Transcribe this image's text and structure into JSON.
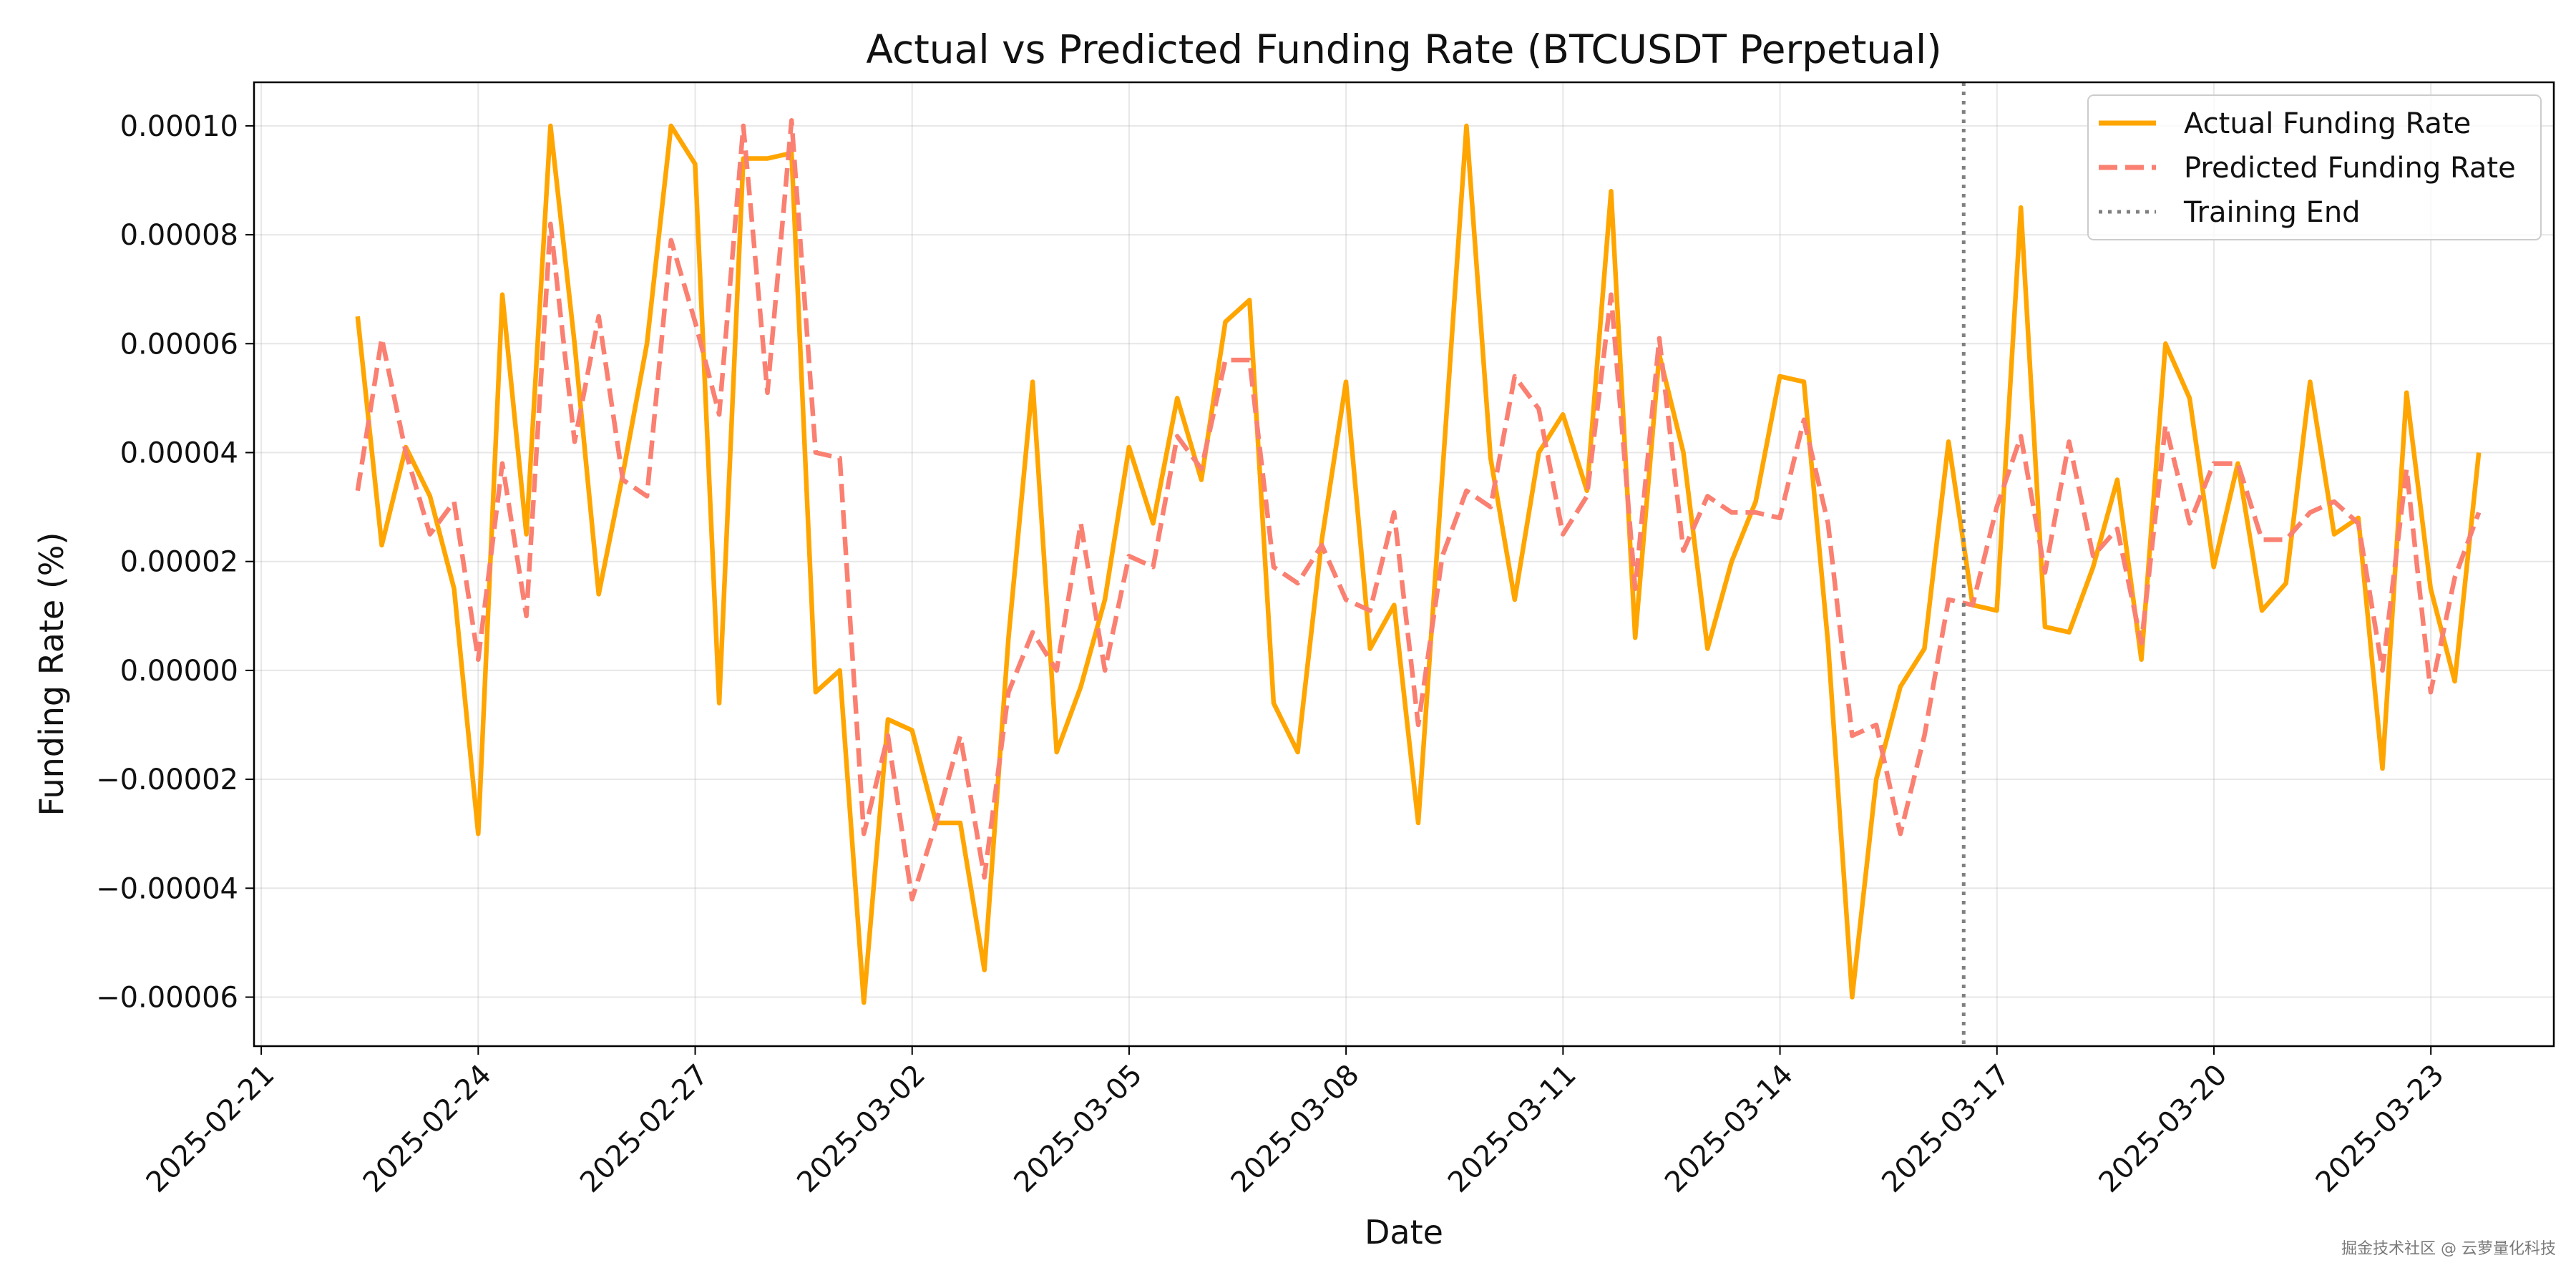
{
  "chart_data": {
    "type": "line",
    "title": "Actual vs Predicted Funding Rate (BTCUSDT Perpetual)",
    "xlabel": "Date",
    "ylabel": "Funding Rate (%)",
    "xlim": [
      -0.1,
      31.7
    ],
    "ylim": [
      -6.9e-05,
      0.000108
    ],
    "grid": true,
    "legend_position": "top-right",
    "x_ticks": [
      {
        "x": 0,
        "label": "2025-02-21"
      },
      {
        "x": 3,
        "label": "2025-02-24"
      },
      {
        "x": 6,
        "label": "2025-02-27"
      },
      {
        "x": 9,
        "label": "2025-03-02"
      },
      {
        "x": 12,
        "label": "2025-03-05"
      },
      {
        "x": 15,
        "label": "2025-03-08"
      },
      {
        "x": 18,
        "label": "2025-03-11"
      },
      {
        "x": 21,
        "label": "2025-03-14"
      },
      {
        "x": 24,
        "label": "2025-03-17"
      },
      {
        "x": 27,
        "label": "2025-03-20"
      },
      {
        "x": 30,
        "label": "2025-03-23"
      }
    ],
    "y_ticks": [
      {
        "y": 0.0001,
        "label": "0.00010"
      },
      {
        "y": 8e-05,
        "label": "0.00008"
      },
      {
        "y": 6e-05,
        "label": "0.00006"
      },
      {
        "y": 4e-05,
        "label": "0.00004"
      },
      {
        "y": 2e-05,
        "label": "0.00002"
      },
      {
        "y": 0.0,
        "label": "0.00000"
      },
      {
        "y": -2e-05,
        "label": "−0.00002"
      },
      {
        "y": -4e-05,
        "label": "−0.00004"
      },
      {
        "y": -6e-05,
        "label": "−0.00006"
      }
    ],
    "x_start": 1.333,
    "x_step": 0.3333,
    "series": [
      {
        "name": "Actual Funding Rate",
        "style": "solid",
        "color": "#FFA500",
        "values": [
          6.5e-05,
          2.3e-05,
          4.1e-05,
          3.2e-05,
          1.5e-05,
          -3e-05,
          6.9e-05,
          2.5e-05,
          0.0001,
          6e-05,
          1.4e-05,
          3.6e-05,
          6e-05,
          0.0001,
          9.3e-05,
          -6e-06,
          9.4e-05,
          9.4e-05,
          9.5e-05,
          -4e-06,
          0.0,
          -6.1e-05,
          -9e-06,
          -1.1e-05,
          -2.8e-05,
          -2.8e-05,
          -5.5e-05,
          6e-06,
          5.3e-05,
          -1.5e-05,
          -3e-06,
          1.3e-05,
          4.1e-05,
          2.7e-05,
          5e-05,
          3.5e-05,
          6.4e-05,
          6.8e-05,
          -6e-06,
          -1.5e-05,
          2.4e-05,
          5.3e-05,
          4e-06,
          1.2e-05,
          -2.8e-05,
          3.6e-05,
          0.0001,
          3.9e-05,
          1.3e-05,
          4e-05,
          4.7e-05,
          3.3e-05,
          8.8e-05,
          6e-06,
          5.8e-05,
          4e-05,
          4e-06,
          2e-05,
          3.1e-05,
          5.4e-05,
          5.3e-05,
          5e-06,
          -6e-05,
          -2e-05,
          -3e-06,
          4e-06,
          4.2e-05,
          1.2e-05,
          1.1e-05,
          8.5e-05,
          8e-06,
          7e-06,
          1.9e-05,
          3.5e-05,
          2e-06,
          6e-05,
          5e-05,
          1.9e-05,
          3.8e-05,
          1.1e-05,
          1.6e-05,
          5.3e-05,
          2.5e-05,
          2.8e-05,
          -1.8e-05,
          5.1e-05,
          1.5e-05,
          -2e-06,
          4e-05
        ]
      },
      {
        "name": "Predicted Funding Rate",
        "style": "dashed",
        "color": "#FA8072",
        "values": [
          3.3e-05,
          6.1e-05,
          4e-05,
          2.5e-05,
          3.1e-05,
          2e-06,
          3.8e-05,
          1e-05,
          8.2e-05,
          4.2e-05,
          6.5e-05,
          3.5e-05,
          3.2e-05,
          7.9e-05,
          6.4e-05,
          4.7e-05,
          0.0001,
          5.1e-05,
          0.000101,
          4e-05,
          3.9e-05,
          -3e-05,
          -1.2e-05,
          -4.2e-05,
          -2.8e-05,
          -1.2e-05,
          -3.8e-05,
          -4e-06,
          7e-06,
          0.0,
          2.7e-05,
          0.0,
          2.1e-05,
          1.9e-05,
          4.3e-05,
          3.7e-05,
          5.7e-05,
          5.7e-05,
          1.9e-05,
          1.6e-05,
          2.3e-05,
          1.3e-05,
          1.1e-05,
          2.9e-05,
          -1e-05,
          2.1e-05,
          3.3e-05,
          3e-05,
          5.4e-05,
          4.8e-05,
          2.5e-05,
          3.2e-05,
          6.9e-05,
          1.5e-05,
          6.1e-05,
          2.2e-05,
          3.2e-05,
          2.9e-05,
          2.9e-05,
          2.8e-05,
          4.6e-05,
          2.7e-05,
          -1.2e-05,
          -1e-05,
          -3e-05,
          -1.2e-05,
          1.3e-05,
          1.2e-05,
          3e-05,
          4.3e-05,
          1.8e-05,
          4.2e-05,
          2.1e-05,
          2.6e-05,
          5e-06,
          4.5e-05,
          2.7e-05,
          3.8e-05,
          3.8e-05,
          2.4e-05,
          2.4e-05,
          2.9e-05,
          3.1e-05,
          2.7e-05,
          0.0,
          3.7e-05,
          -4e-06,
          1.7e-05,
          2.9e-05
        ]
      },
      {
        "name": "Training End",
        "style": "dotted",
        "color": "#808080",
        "x": 23.54
      }
    ]
  },
  "watermark": "掘金技术社区 @ 云萝量化科技"
}
